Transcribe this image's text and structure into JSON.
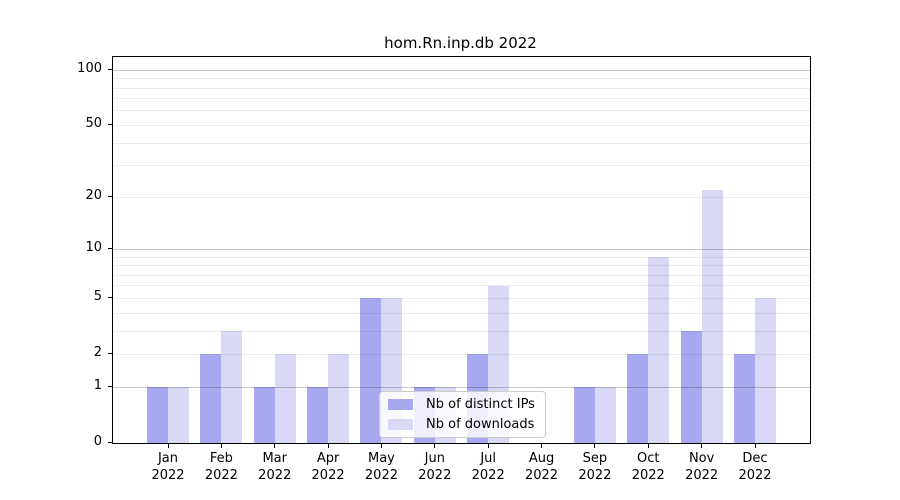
{
  "chart_data": {
    "type": "bar",
    "title": "hom.Rn.inp.db 2022",
    "categories": [
      "Jan 2022",
      "Feb 2022",
      "Mar 2022",
      "Apr 2022",
      "May 2022",
      "Jun 2022",
      "Jul 2022",
      "Aug 2022",
      "Sep 2022",
      "Oct 2022",
      "Nov 2022",
      "Dec 2022"
    ],
    "series": [
      {
        "name": "Nb of distinct IPs",
        "color": "#a8a8f0",
        "values": [
          1,
          2,
          1,
          1,
          5,
          1,
          2,
          0,
          1,
          2,
          3,
          2
        ]
      },
      {
        "name": "Nb of downloads",
        "color": "#d9d9f7",
        "values": [
          1,
          3,
          2,
          2,
          5,
          1,
          6,
          0,
          1,
          9,
          22,
          5
        ]
      }
    ],
    "yscale": "log1p",
    "yticks": [
      0,
      1,
      2,
      5,
      10,
      20,
      50,
      100
    ],
    "ylim": [
      0,
      118
    ],
    "xlabel": "",
    "ylabel": "",
    "grid": true,
    "legend_position": "lower center"
  }
}
